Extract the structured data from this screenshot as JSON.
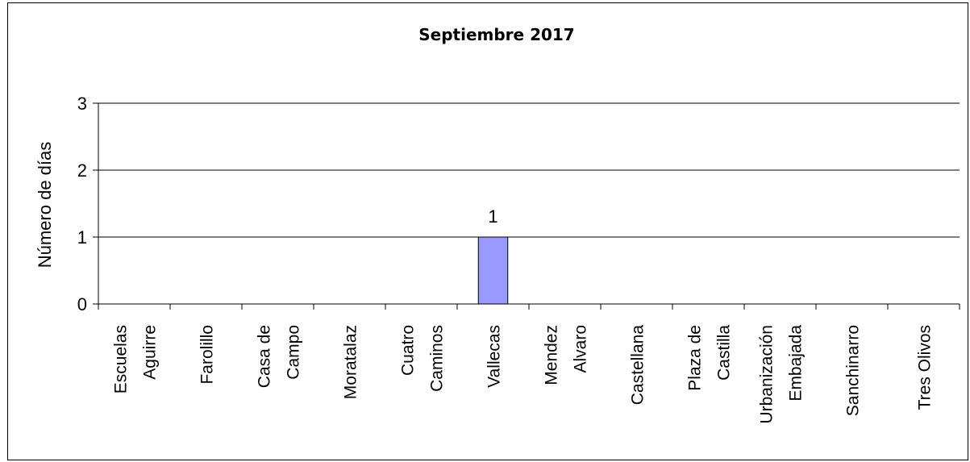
{
  "chart_data": {
    "type": "bar",
    "title": "Septiembre 2017",
    "xlabel": "",
    "ylabel": "Número de días",
    "ylim": [
      0,
      3
    ],
    "yticks": [
      0,
      1,
      2,
      3
    ],
    "grid": true,
    "legend": "none",
    "bar_color": "#9999ff",
    "categories": [
      [
        "Escuelas",
        "Aguirre"
      ],
      [
        "Farolillo"
      ],
      [
        "Casa de",
        "Campo"
      ],
      [
        "Moratalaz"
      ],
      [
        "Cuatro",
        "Caminos"
      ],
      [
        "Vallecas"
      ],
      [
        "Mendez",
        "Alvaro"
      ],
      [
        "Castellana"
      ],
      [
        "Plaza de",
        "Castilla"
      ],
      [
        "Urbanización",
        "Embajada"
      ],
      [
        "Sanchinarro"
      ],
      [
        "Tres Olivos"
      ]
    ],
    "values": [
      0,
      0,
      0,
      0,
      0,
      1,
      0,
      0,
      0,
      0,
      0,
      0
    ],
    "data_labels": [
      "",
      "",
      "",
      "",
      "",
      "1",
      "",
      "",
      "",
      "",
      "",
      ""
    ]
  }
}
